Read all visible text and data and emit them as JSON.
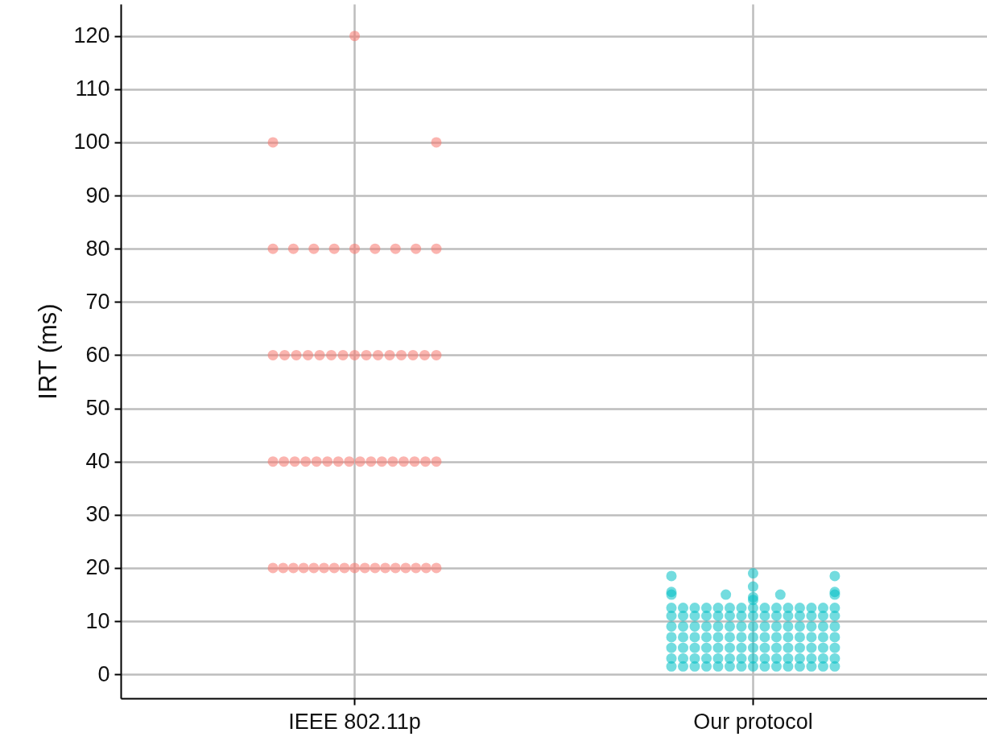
{
  "chart_data": {
    "type": "scatter",
    "ylabel": "IRT (ms)",
    "categories": [
      "IEEE 802.11p",
      "Our protocol"
    ],
    "ylim": [
      -4.5,
      126
    ],
    "yticks": [
      0,
      10,
      20,
      30,
      40,
      50,
      60,
      70,
      80,
      90,
      100,
      110,
      120
    ],
    "grid": true,
    "marker": "circle",
    "series": [
      {
        "color": "#f8766d",
        "x": [
          "IEEE 802.11p",
          "IEEE 802.11p",
          "IEEE 802.11p",
          "IEEE 802.11p",
          "IEEE 802.11p",
          "IEEE 802.11p",
          "IEEE 802.11p",
          "IEEE 802.11p",
          "IEEE 802.11p",
          "IEEE 802.11p",
          "IEEE 802.11p",
          "IEEE 802.11p",
          "IEEE 802.11p",
          "IEEE 802.11p",
          "IEEE 802.11p",
          "IEEE 802.11p",
          "IEEE 802.11p",
          "IEEE 802.11p",
          "IEEE 802.11p",
          "IEEE 802.11p",
          "IEEE 802.11p",
          "IEEE 802.11p",
          "IEEE 802.11p",
          "IEEE 802.11p",
          "IEEE 802.11p",
          "IEEE 802.11p",
          "IEEE 802.11p",
          "IEEE 802.11p",
          "IEEE 802.11p",
          "IEEE 802.11p",
          "IEEE 802.11p",
          "IEEE 802.11p",
          "IEEE 802.11p",
          "IEEE 802.11p",
          "IEEE 802.11p",
          "IEEE 802.11p",
          "IEEE 802.11p",
          "IEEE 802.11p",
          "IEEE 802.11p",
          "IEEE 802.11p",
          "IEEE 802.11p",
          "IEEE 802.11p",
          "IEEE 802.11p",
          "IEEE 802.11p",
          "IEEE 802.11p",
          "IEEE 802.11p",
          "IEEE 802.11p",
          "IEEE 802.11p",
          "IEEE 802.11p",
          "IEEE 802.11p",
          "IEEE 802.11p",
          "IEEE 802.11p",
          "IEEE 802.11p",
          "IEEE 802.11p",
          "IEEE 802.11p",
          "IEEE 802.11p",
          "IEEE 802.11p",
          "IEEE 802.11p",
          "IEEE 802.11p",
          "IEEE 802.11p"
        ],
        "values": [
          120,
          100,
          100,
          80,
          80,
          80,
          80,
          80,
          80,
          80,
          80,
          80,
          60,
          60,
          60,
          60,
          60,
          60,
          60,
          60,
          60,
          60,
          60,
          60,
          60,
          60,
          60,
          40,
          40,
          40,
          40,
          40,
          40,
          40,
          40,
          40,
          40,
          40,
          40,
          40,
          40,
          40,
          40,
          20,
          20,
          20,
          20,
          20,
          20,
          20,
          20,
          20,
          20,
          20,
          20,
          20,
          20,
          20,
          20,
          20
        ]
      },
      {
        "color": "#00bfc4",
        "x": [
          "Our protocol",
          "Our protocol",
          "Our protocol",
          "Our protocol",
          "Our protocol",
          "Our protocol",
          "Our protocol",
          "Our protocol",
          "Our protocol",
          "Our protocol",
          "Our protocol",
          "Our protocol",
          "Our protocol",
          "Our protocol",
          "Our protocol",
          "Our protocol",
          "Our protocol",
          "Our protocol",
          "Our protocol",
          "Our protocol",
          "Our protocol",
          "Our protocol",
          "Our protocol",
          "Our protocol",
          "Our protocol",
          "Our protocol",
          "Our protocol",
          "Our protocol",
          "Our protocol",
          "Our protocol",
          "Our protocol",
          "Our protocol",
          "Our protocol",
          "Our protocol",
          "Our protocol",
          "Our protocol",
          "Our protocol",
          "Our protocol",
          "Our protocol",
          "Our protocol",
          "Our protocol",
          "Our protocol",
          "Our protocol",
          "Our protocol",
          "Our protocol",
          "Our protocol",
          "Our protocol",
          "Our protocol",
          "Our protocol",
          "Our protocol",
          "Our protocol",
          "Our protocol",
          "Our protocol",
          "Our protocol",
          "Our protocol",
          "Our protocol",
          "Our protocol",
          "Our protocol",
          "Our protocol",
          "Our protocol",
          "Our protocol",
          "Our protocol",
          "Our protocol",
          "Our protocol",
          "Our protocol",
          "Our protocol",
          "Our protocol",
          "Our protocol",
          "Our protocol",
          "Our protocol",
          "Our protocol",
          "Our protocol",
          "Our protocol",
          "Our protocol",
          "Our protocol",
          "Our protocol",
          "Our protocol",
          "Our protocol",
          "Our protocol",
          "Our protocol",
          "Our protocol",
          "Our protocol",
          "Our protocol",
          "Our protocol",
          "Our protocol",
          "Our protocol",
          "Our protocol",
          "Our protocol",
          "Our protocol",
          "Our protocol",
          "Our protocol",
          "Our protocol",
          "Our protocol",
          "Our protocol",
          "Our protocol",
          "Our protocol",
          "Our protocol",
          "Our protocol",
          "Our protocol",
          "Our protocol",
          "Our protocol",
          "Our protocol",
          "Our protocol",
          "Our protocol",
          "Our protocol",
          "Our protocol",
          "Our protocol",
          "Our protocol",
          "Our protocol",
          "Our protocol",
          "Our protocol",
          "Our protocol",
          "Our protocol",
          "Our protocol",
          "Our protocol",
          "Our protocol",
          "Our protocol"
        ],
        "values": [
          1.5,
          1.5,
          1.5,
          1.5,
          1.5,
          1.5,
          1.5,
          1.5,
          1.5,
          1.5,
          1.5,
          1.5,
          1.5,
          1.5,
          1.5,
          3,
          3,
          3,
          3,
          3,
          3,
          3,
          3,
          3,
          3,
          3,
          3,
          3,
          3,
          3,
          5,
          5,
          5,
          5,
          5,
          5,
          5,
          5,
          5,
          5,
          5,
          5,
          5,
          5,
          5,
          7,
          7,
          7,
          7,
          7,
          7,
          7,
          7,
          7,
          7,
          7,
          7,
          7,
          7,
          7,
          9,
          9,
          9,
          9,
          9,
          9,
          9,
          9,
          9,
          9,
          9,
          9,
          9,
          9,
          9,
          11,
          11,
          11,
          11,
          11,
          11,
          11,
          11,
          11,
          11,
          11,
          11,
          11,
          11,
          11,
          12.5,
          12.5,
          12.5,
          12.5,
          12.5,
          12.5,
          12.5,
          12.5,
          12.5,
          12.5,
          12.5,
          12.5,
          12.5,
          12.5,
          12.5,
          18.5,
          18.5,
          19,
          16.5,
          15.5,
          14.5,
          15,
          15,
          15,
          15,
          15.5,
          14
        ]
      }
    ]
  }
}
